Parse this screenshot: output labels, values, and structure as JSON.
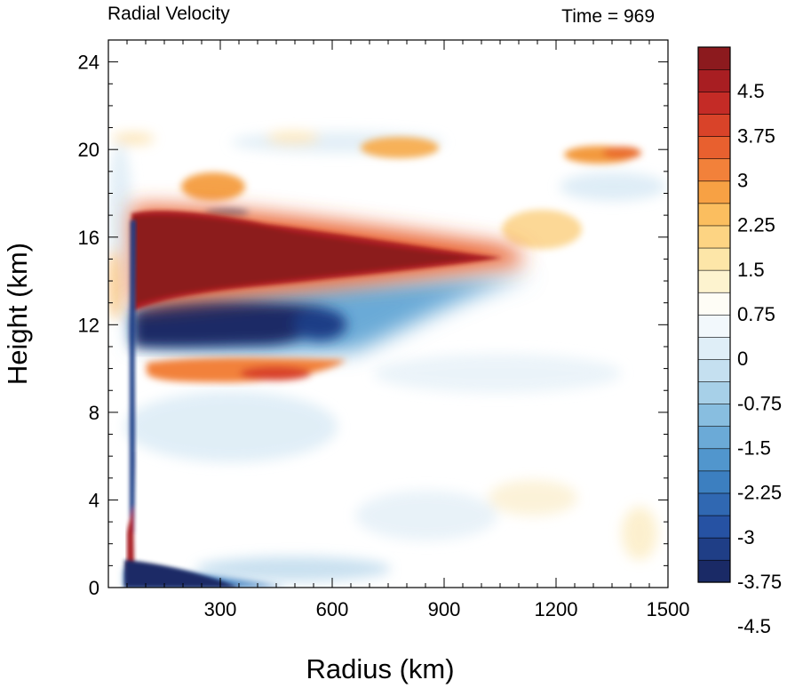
{
  "chart_data": {
    "type": "heatmap",
    "title_left": "Radial Velocity",
    "title_right": "Time = 969",
    "xlabel": "Radius (km)",
    "ylabel": "Height (km)",
    "xlim": [
      0,
      1500
    ],
    "ylim": [
      0,
      25
    ],
    "x_ticks": [
      "300",
      "600",
      "900",
      "1200",
      "1500"
    ],
    "y_ticks": [
      "0",
      "4",
      "8",
      "12",
      "16",
      "20",
      "24"
    ],
    "colorbar": {
      "levels": 24,
      "range": [
        -5.25,
        5.25
      ],
      "labels": [
        "4.5",
        "3.75",
        "3",
        "2.25",
        "1.5",
        "0.75",
        "0",
        "-0.75",
        "-1.5",
        "-2.25",
        "-3",
        "-3.75",
        "-4.5"
      ],
      "colors": [
        "#1a2a66",
        "#1f3e86",
        "#2652a3",
        "#3068b2",
        "#3c7fc0",
        "#5196cd",
        "#6baad7",
        "#88bee0",
        "#a7d0e8",
        "#c5e0f0",
        "#dfeef7",
        "#f2f8fc",
        "#fefdf6",
        "#fdf3cf",
        "#fde6a8",
        "#fdd483",
        "#fbbe5f",
        "#f7a144",
        "#f2813a",
        "#e8602f",
        "#d94329",
        "#c42b26",
        "#a81e22",
        "#8c1a1e"
      ]
    },
    "features": [
      {
        "name": "upper outflow",
        "r": [
          70,
          1120
        ],
        "z": [
          14,
          17.5
        ],
        "value": 5.5
      },
      {
        "name": "upper inflow",
        "r": [
          70,
          900
        ],
        "z": [
          10.5,
          13.5
        ],
        "value": -5.0
      },
      {
        "name": "mid outflow",
        "r": [
          150,
          560
        ],
        "z": [
          9.2,
          10.5
        ],
        "value": 3.5
      },
      {
        "name": "boundary-layer inflow",
        "r": [
          55,
          420
        ],
        "z": [
          0,
          1.3
        ],
        "value": -5.5
      },
      {
        "name": "eyewall column",
        "r": [
          55,
          75
        ],
        "z": [
          0,
          17
        ],
        "value": -5.0
      },
      {
        "name": "low-level outflow",
        "r": [
          55,
          75
        ],
        "z": [
          0,
          4
        ],
        "value": 5.0
      },
      {
        "name": "upper-level outflow patch",
        "r": [
          1280,
          1480
        ],
        "z": [
          19.5,
          20.8
        ],
        "value": 3.0
      }
    ]
  }
}
